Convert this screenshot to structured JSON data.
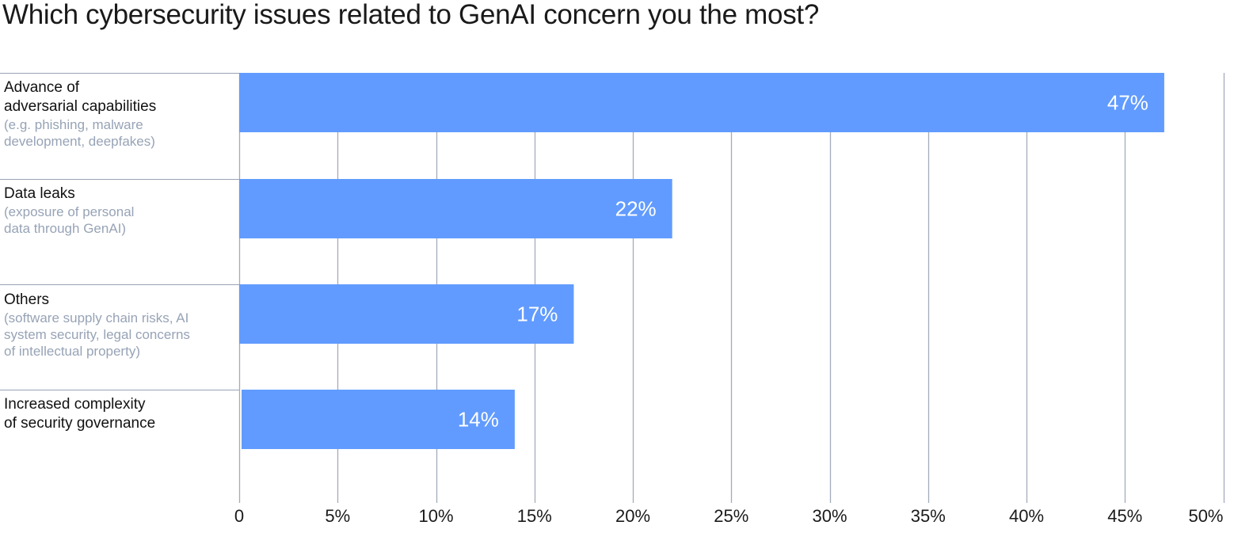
{
  "chart_data": {
    "type": "bar",
    "orientation": "horizontal",
    "title": "Which cybersecurity issues related to GenAI concern you the most?",
    "categories": [
      {
        "label": "Advance of\nadversarial capabilities",
        "sublabel": "(e.g. phishing, malware\ndevelopment, deepfakes)"
      },
      {
        "label": "Data leaks",
        "sublabel": "(exposure of personal\ndata through GenAI)"
      },
      {
        "label": "Others",
        "sublabel": "(software supply chain risks, AI\nsystem security, legal concerns\nof intellectual property)"
      },
      {
        "label": "Increased complexity\nof security governance",
        "sublabel": ""
      }
    ],
    "values": [
      47,
      22,
      17,
      14
    ],
    "data_labels": [
      "47%",
      "22%",
      "17%",
      "14%"
    ],
    "xlim": [
      0,
      50
    ],
    "x_ticks": [
      0,
      5,
      10,
      15,
      20,
      25,
      30,
      35,
      40,
      45,
      50
    ],
    "x_tick_labels": [
      "0",
      "5%",
      "10%",
      "15%",
      "20%",
      "25%",
      "30%",
      "35%",
      "40%",
      "45%",
      "50%"
    ],
    "grid": "vertical",
    "bar_color": "#619bff",
    "grid_color": "#a3acbb",
    "label_color": "#ffffff"
  }
}
